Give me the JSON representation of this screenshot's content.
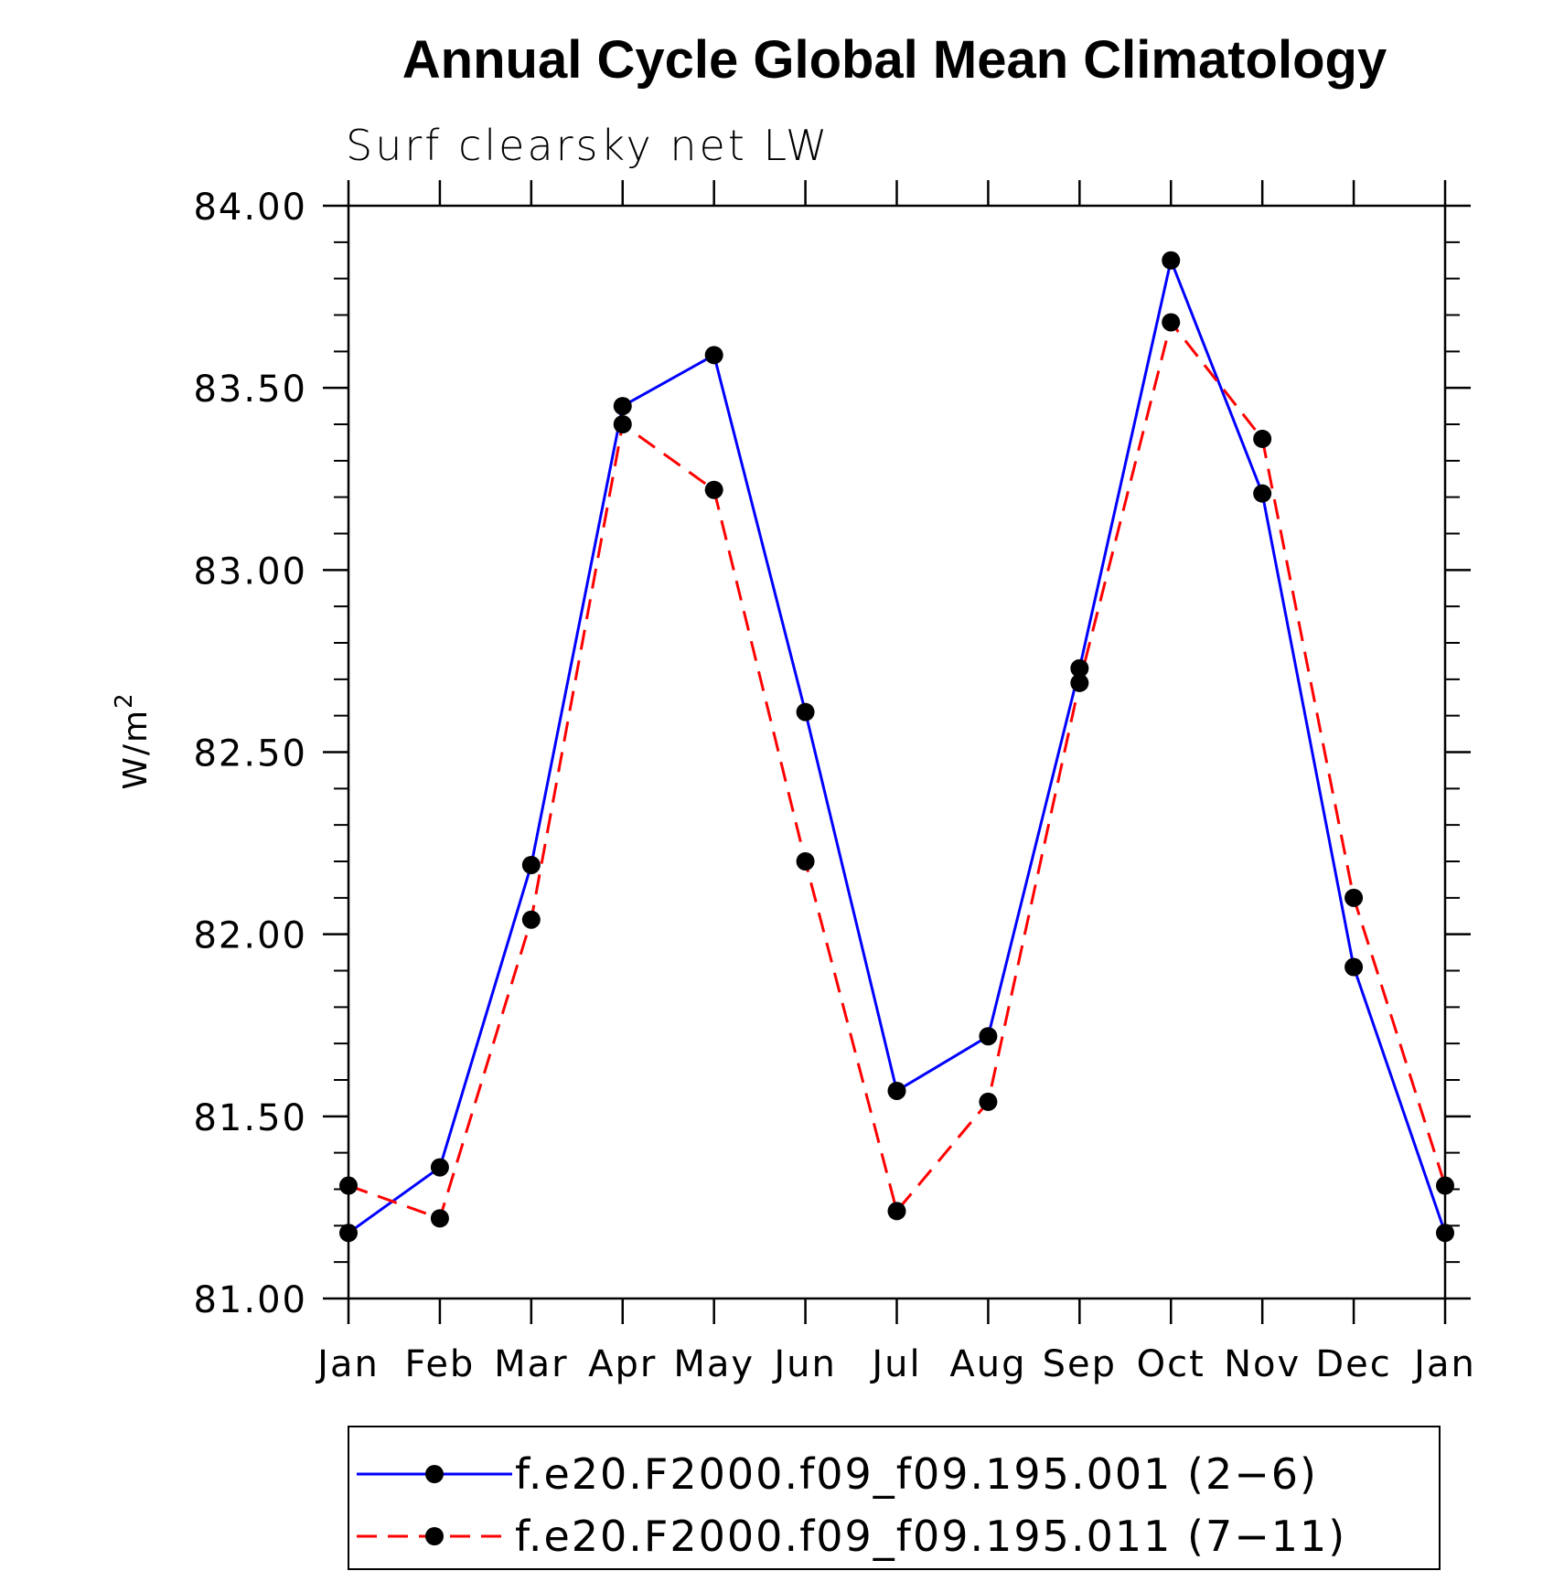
{
  "chart_data": {
    "type": "line",
    "title": "Annual Cycle Global Mean Climatology",
    "subtitle": "Surf clearsky net LW",
    "xlabel": "",
    "ylabel": "W/m",
    "ylabel_superscript": "2",
    "categories": [
      "Jan",
      "Feb",
      "Mar",
      "Apr",
      "May",
      "Jun",
      "Jul",
      "Aug",
      "Sep",
      "Oct",
      "Nov",
      "Dec",
      "Jan"
    ],
    "ylim": [
      81.0,
      84.0
    ],
    "yticks": [
      "81.00",
      "81.50",
      "82.00",
      "82.50",
      "83.00",
      "83.50",
      "84.00"
    ],
    "y_minor_step": 0.1,
    "grid": false,
    "legend_position": "bottom",
    "series": [
      {
        "name": "f.e20.F2000.f09_f09.195.001 (2−6)",
        "color": "#0000ff",
        "dash": "solid",
        "marker": "filled-circle",
        "values": [
          81.18,
          81.36,
          82.19,
          83.45,
          83.59,
          82.61,
          81.57,
          81.72,
          82.73,
          83.85,
          83.21,
          81.91,
          81.18
        ]
      },
      {
        "name": "f.e20.F2000.f09_f09.195.011 (7−11)",
        "color": "#ff0000",
        "dash": "dashed",
        "marker": "filled-circle",
        "values": [
          81.31,
          81.22,
          82.04,
          83.4,
          83.22,
          82.2,
          81.24,
          81.54,
          82.69,
          83.68,
          83.36,
          82.1,
          81.31
        ]
      }
    ]
  }
}
